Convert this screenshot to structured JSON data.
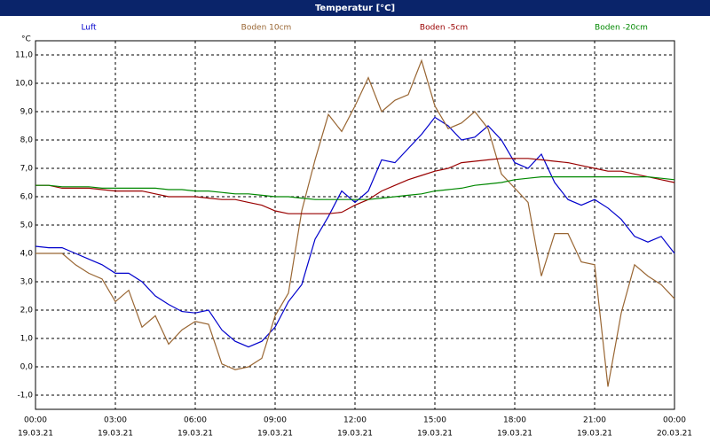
{
  "chart_data": {
    "type": "line",
    "title": "Temperatur [°C]",
    "y_unit": "°C",
    "x": [
      0,
      0.5,
      1,
      1.5,
      2,
      2.5,
      3,
      3.5,
      4,
      4.5,
      5,
      5.5,
      6,
      6.5,
      7,
      7.5,
      8,
      8.5,
      9,
      9.5,
      10,
      10.5,
      11,
      11.5,
      12,
      12.5,
      13,
      13.5,
      14,
      14.5,
      15,
      15.5,
      16,
      16.5,
      17,
      17.5,
      18,
      18.5,
      19,
      19.5,
      20,
      20.5,
      21,
      21.5,
      22,
      22.5,
      23,
      23.5,
      24
    ],
    "series": [
      {
        "name": "Luft",
        "color": "#0000cc",
        "values": [
          4.25,
          4.2,
          4.2,
          4.0,
          3.8,
          3.6,
          3.3,
          3.3,
          3.0,
          2.5,
          2.2,
          1.95,
          1.9,
          2.0,
          1.3,
          0.9,
          0.7,
          0.9,
          1.4,
          2.3,
          2.9,
          4.5,
          5.3,
          6.2,
          5.8,
          6.2,
          7.3,
          7.2,
          7.7,
          8.2,
          8.8,
          8.5,
          8.0,
          8.1,
          8.5,
          8.0,
          7.2,
          7.0,
          7.5,
          6.5,
          5.9,
          5.7,
          5.9,
          5.6,
          5.2,
          4.6,
          4.4,
          4.6,
          4.0
        ]
      },
      {
        "name": "Boden 10cm",
        "color": "#996633",
        "values": [
          4.0,
          4.0,
          4.0,
          3.6,
          3.3,
          3.1,
          2.3,
          2.7,
          1.4,
          1.8,
          0.8,
          1.3,
          1.6,
          1.5,
          0.1,
          -0.1,
          0.0,
          0.3,
          1.8,
          2.6,
          5.5,
          7.3,
          8.9,
          8.3,
          9.2,
          10.2,
          9.0,
          9.4,
          9.6,
          10.8,
          9.2,
          8.4,
          8.6,
          9.0,
          8.4,
          6.8,
          6.3,
          5.8,
          3.2,
          4.7,
          4.7,
          3.7,
          3.6,
          -0.7,
          1.9,
          3.6,
          3.2,
          2.9,
          2.4
        ]
      },
      {
        "name": "Boden -5cm",
        "color": "#990000",
        "values": [
          6.4,
          6.4,
          6.3,
          6.3,
          6.3,
          6.25,
          6.2,
          6.2,
          6.2,
          6.1,
          6.0,
          6.0,
          6.0,
          5.95,
          5.9,
          5.9,
          5.8,
          5.7,
          5.5,
          5.4,
          5.4,
          5.4,
          5.4,
          5.45,
          5.7,
          5.9,
          6.2,
          6.4,
          6.6,
          6.75,
          6.9,
          7.0,
          7.2,
          7.25,
          7.3,
          7.35,
          7.35,
          7.35,
          7.3,
          7.25,
          7.2,
          7.1,
          7.0,
          6.9,
          6.9,
          6.8,
          6.7,
          6.6,
          6.5
        ]
      },
      {
        "name": "Boden -20cm",
        "color": "#008800",
        "values": [
          6.4,
          6.4,
          6.35,
          6.35,
          6.35,
          6.3,
          6.3,
          6.3,
          6.3,
          6.3,
          6.25,
          6.25,
          6.2,
          6.2,
          6.15,
          6.1,
          6.1,
          6.05,
          6.0,
          6.0,
          5.95,
          5.9,
          5.9,
          5.9,
          5.9,
          5.9,
          5.95,
          6.0,
          6.05,
          6.1,
          6.2,
          6.25,
          6.3,
          6.4,
          6.45,
          6.5,
          6.6,
          6.65,
          6.7,
          6.7,
          6.7,
          6.7,
          6.7,
          6.7,
          6.7,
          6.7,
          6.7,
          6.65,
          6.6
        ]
      }
    ],
    "xlim": [
      0,
      24
    ],
    "xticks": [
      {
        "value": 0,
        "label": "00:00"
      },
      {
        "value": 3,
        "label": "03:00"
      },
      {
        "value": 6,
        "label": "06:00"
      },
      {
        "value": 9,
        "label": "09:00"
      },
      {
        "value": 12,
        "label": "12:00"
      },
      {
        "value": 15,
        "label": "15:00"
      },
      {
        "value": 18,
        "label": "18:00"
      },
      {
        "value": 21,
        "label": "21:00"
      },
      {
        "value": 24,
        "label": "00:00"
      }
    ],
    "xtick_dates": [
      "19.03.21",
      "19.03.21",
      "19.03.21",
      "19.03.21",
      "19.03.21",
      "19.03.21",
      "19.03.21",
      "19.03.21",
      "20.03.21"
    ],
    "ylim": [
      -1.5,
      11.5
    ],
    "yticks": [
      {
        "value": -1,
        "label": "-1,0"
      },
      {
        "value": 0,
        "label": "0,0"
      },
      {
        "value": 1,
        "label": "1,0"
      },
      {
        "value": 2,
        "label": "2,0"
      },
      {
        "value": 3,
        "label": "3,0"
      },
      {
        "value": 4,
        "label": "4,0"
      },
      {
        "value": 5,
        "label": "5,0"
      },
      {
        "value": 6,
        "label": "6,0"
      },
      {
        "value": 7,
        "label": "7,0"
      },
      {
        "value": 8,
        "label": "8,0"
      },
      {
        "value": 9,
        "label": "9,0"
      },
      {
        "value": 10,
        "label": "10,0"
      },
      {
        "value": 11,
        "label": "11,0"
      }
    ],
    "grid": true
  }
}
